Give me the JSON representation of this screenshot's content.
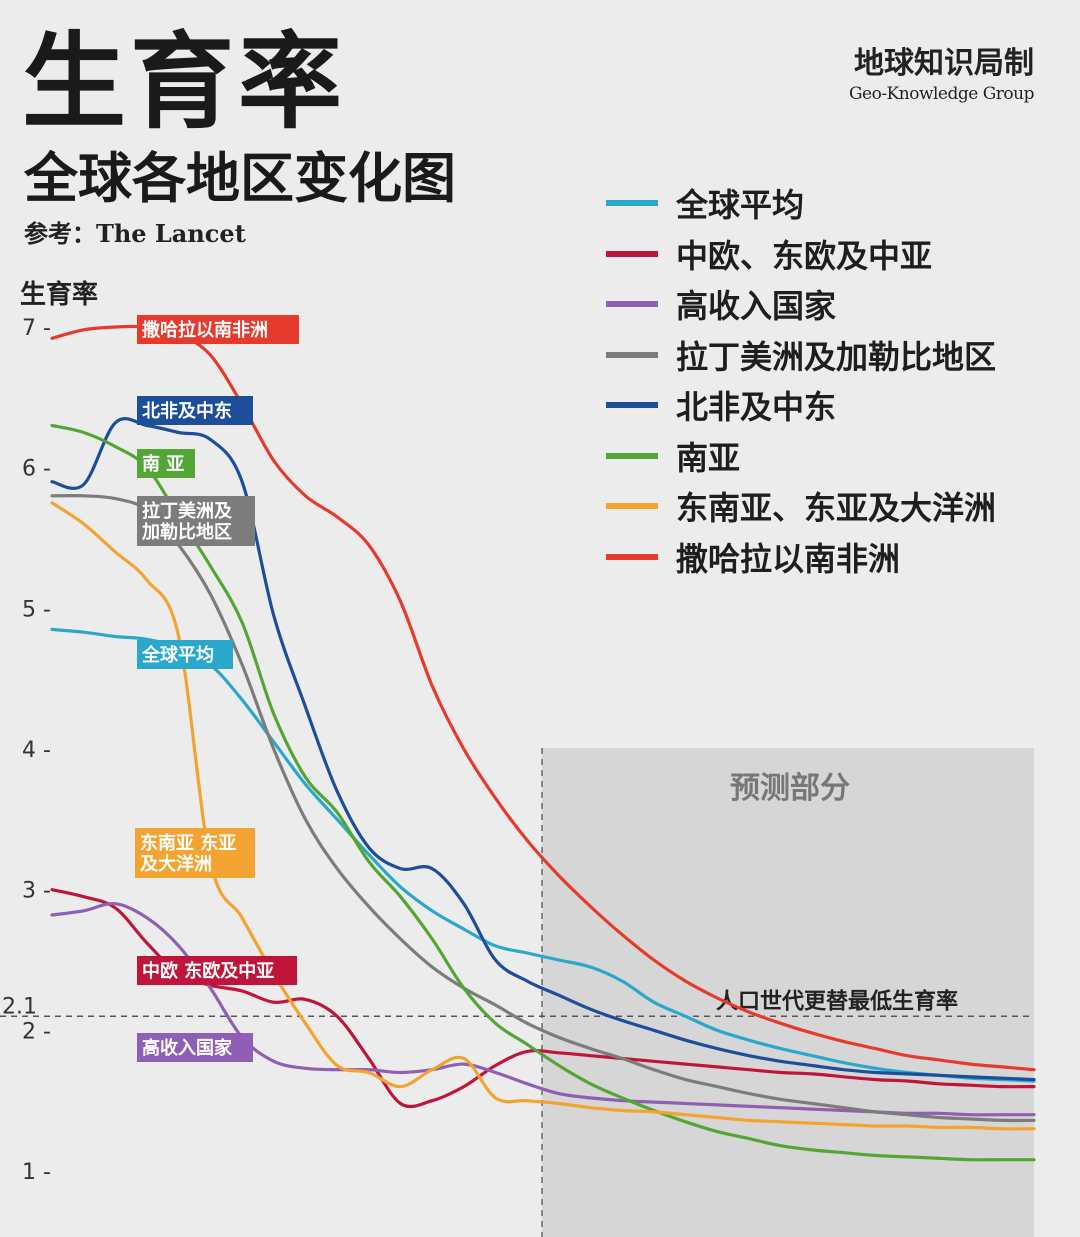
{
  "header": {
    "title": "生育率",
    "subtitle": "全球各地区变化图",
    "source": "参考：The Lancet",
    "brand_zh": "地球知识局制",
    "brand_en": "Geo-Knowledge Group"
  },
  "chart_data": {
    "type": "line",
    "ylabel": "生育率",
    "ylim": [
      1,
      7
    ],
    "yticks": [
      {
        "value": 7,
        "label": "7 -"
      },
      {
        "value": 6,
        "label": "6 -"
      },
      {
        "value": 5,
        "label": "5 -"
      },
      {
        "value": 4,
        "label": "4 -"
      },
      {
        "value": 3,
        "label": "3 -"
      },
      {
        "value": 2,
        "label": "2 -"
      },
      {
        "value": 1,
        "label": "1 -"
      }
    ],
    "reference_line": {
      "value": 2.1,
      "tick_label": "2.1",
      "label": "人口世代更替最低生育率"
    },
    "forecast_label": "预测部分",
    "legend_position": "top-right",
    "series": [
      {
        "name": "全球平均",
        "color": "#29a8cc",
        "tag": [
          "全球平均"
        ],
        "values": [
          4.85,
          4.83,
          4.8,
          4.78,
          4.72,
          4.6,
          4.35,
          4.05,
          3.75,
          3.5,
          3.25,
          3.02,
          2.85,
          2.72,
          2.6,
          2.55,
          2.5,
          2.45,
          2.35,
          2.2,
          2.1,
          2.0,
          1.93,
          1.87,
          1.82,
          1.77,
          1.73,
          1.7,
          1.68,
          1.66,
          1.65,
          1.64
        ]
      },
      {
        "name": "中欧、东欧及中亚",
        "color": "#c0153a",
        "tag": [
          "中欧 东欧及中亚"
        ],
        "values": [
          3.0,
          2.95,
          2.87,
          2.62,
          2.4,
          2.32,
          2.28,
          2.2,
          2.22,
          2.1,
          1.8,
          1.48,
          1.5,
          1.6,
          1.75,
          1.85,
          1.84,
          1.82,
          1.8,
          1.78,
          1.76,
          1.74,
          1.72,
          1.7,
          1.69,
          1.67,
          1.65,
          1.64,
          1.62,
          1.61,
          1.6,
          1.6
        ]
      },
      {
        "name": "高收入国家",
        "color": "#8e5fb5",
        "tag": [
          "高收入国家"
        ],
        "values": [
          2.82,
          2.85,
          2.9,
          2.8,
          2.6,
          2.3,
          1.95,
          1.78,
          1.73,
          1.72,
          1.72,
          1.7,
          1.72,
          1.76,
          1.7,
          1.62,
          1.55,
          1.52,
          1.5,
          1.49,
          1.48,
          1.47,
          1.46,
          1.45,
          1.44,
          1.43,
          1.42,
          1.41,
          1.41,
          1.4,
          1.4,
          1.4
        ]
      },
      {
        "name": "拉丁美洲及加勒比地区",
        "color": "#7c7c7c",
        "tag": [
          "拉丁美洲及",
          "加勒比地区"
        ],
        "values": [
          5.8,
          5.8,
          5.78,
          5.7,
          5.45,
          5.1,
          4.6,
          4.0,
          3.5,
          3.15,
          2.88,
          2.65,
          2.45,
          2.3,
          2.18,
          2.05,
          1.95,
          1.87,
          1.8,
          1.72,
          1.65,
          1.6,
          1.55,
          1.51,
          1.48,
          1.45,
          1.42,
          1.4,
          1.38,
          1.37,
          1.36,
          1.36
        ]
      },
      {
        "name": "北非及中东",
        "color": "#1c4e9a",
        "tag": [
          "北非及中东"
        ],
        "values": [
          5.9,
          5.88,
          6.32,
          6.3,
          6.25,
          6.2,
          5.9,
          4.95,
          4.3,
          3.7,
          3.3,
          3.15,
          3.15,
          2.9,
          2.5,
          2.35,
          2.25,
          2.15,
          2.07,
          2.0,
          1.93,
          1.87,
          1.82,
          1.78,
          1.75,
          1.72,
          1.7,
          1.69,
          1.68,
          1.67,
          1.66,
          1.65
        ]
      },
      {
        "name": "南亚",
        "color": "#53a636",
        "tag": [
          "南 亚"
        ],
        "values": [
          6.3,
          6.25,
          6.15,
          6.0,
          5.65,
          5.3,
          4.9,
          4.25,
          3.8,
          3.55,
          3.2,
          2.95,
          2.65,
          2.3,
          2.05,
          1.9,
          1.75,
          1.62,
          1.52,
          1.43,
          1.35,
          1.28,
          1.23,
          1.18,
          1.15,
          1.13,
          1.11,
          1.1,
          1.09,
          1.08,
          1.08,
          1.08
        ]
      },
      {
        "name": "东南亚、东亚及大洋洲",
        "color": "#f2a330",
        "tag": [
          "东南亚 东亚",
          "及大洋洲"
        ],
        "values": [
          5.75,
          5.6,
          5.4,
          5.2,
          4.8,
          3.2,
          2.8,
          2.4,
          2.05,
          1.75,
          1.7,
          1.6,
          1.72,
          1.8,
          1.52,
          1.5,
          1.48,
          1.45,
          1.43,
          1.42,
          1.4,
          1.38,
          1.36,
          1.35,
          1.34,
          1.33,
          1.32,
          1.32,
          1.31,
          1.31,
          1.3,
          1.3
        ]
      },
      {
        "name": "撒哈拉以南非洲",
        "color": "#e63a2c",
        "tag": [
          "撒哈拉以南非洲"
        ],
        "values": [
          6.92,
          6.98,
          7.0,
          7.0,
          6.95,
          6.8,
          6.45,
          6.05,
          5.8,
          5.65,
          5.45,
          5.05,
          4.45,
          4.0,
          3.65,
          3.35,
          3.1,
          2.88,
          2.68,
          2.5,
          2.35,
          2.23,
          2.13,
          2.05,
          1.98,
          1.92,
          1.87,
          1.82,
          1.79,
          1.76,
          1.74,
          1.72
        ]
      }
    ]
  }
}
